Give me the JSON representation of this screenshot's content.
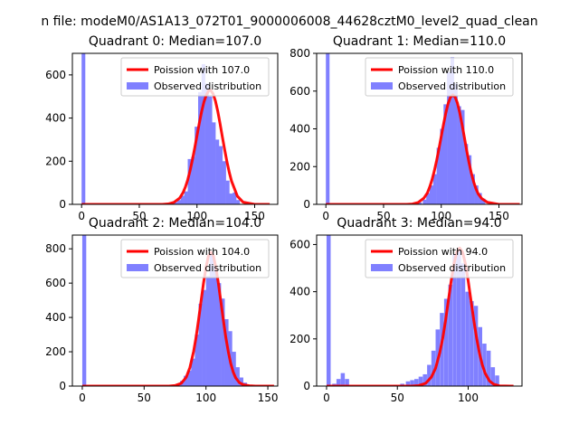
{
  "figure": {
    "suptitle": "n file: modeM0/AS1A13_072T01_9000006008_44628cztM0_level2_quad_clean"
  },
  "colors": {
    "poisson_line": "#ff0000",
    "histogram_fill": "#8080ff",
    "axes": "#000000",
    "background": "#ffffff"
  },
  "chart_data": [
    {
      "type": "bar",
      "title": "Quadrant 0: Median=107.0",
      "xlim": [
        -8,
        170
      ],
      "ylim": [
        0,
        700
      ],
      "xticks": [
        0,
        50,
        100,
        150
      ],
      "yticks": [
        0,
        200,
        400,
        600
      ],
      "legend_position": "top-right",
      "series": [
        {
          "name": "Poission with 107.0",
          "kind": "line",
          "mean": 107.0,
          "x": [
            0,
            60,
            70,
            75,
            80,
            85,
            88,
            90,
            92,
            94,
            96,
            98,
            100,
            102,
            104,
            106,
            107,
            108,
            110,
            112,
            114,
            116,
            118,
            120,
            122,
            124,
            126,
            128,
            130,
            135,
            140,
            150,
            163
          ],
          "y": [
            0,
            0,
            0,
            2,
            9,
            29,
            55,
            81,
            114,
            156,
            205,
            260,
            318,
            376,
            429,
            474,
            490,
            505,
            526,
            528,
            512,
            479,
            432,
            374,
            313,
            253,
            197,
            148,
            107,
            38,
            10,
            0,
            0
          ]
        },
        {
          "name": "Observed distribution",
          "kind": "bars",
          "bin_width": 3.2,
          "bin_starts": [
            0,
            80,
            83,
            86,
            89,
            92,
            95,
            98,
            101,
            104,
            107,
            110,
            113,
            116,
            119,
            122,
            125,
            128,
            131,
            134
          ],
          "counts": [
            700,
            10,
            20,
            40,
            60,
            210,
            220,
            360,
            520,
            650,
            560,
            500,
            380,
            300,
            270,
            200,
            110,
            50,
            55,
            20
          ]
        }
      ]
    },
    {
      "type": "bar",
      "title": "Quadrant 1: Median=110.0",
      "xlim": [
        -8,
        170
      ],
      "ylim": [
        0,
        800
      ],
      "xticks": [
        0,
        50,
        100,
        150
      ],
      "yticks": [
        0,
        200,
        400,
        600,
        800
      ],
      "legend_position": "top-right",
      "series": [
        {
          "name": "Poission with 110.0",
          "kind": "line",
          "mean": 110.0,
          "x": [
            0,
            60,
            70,
            75,
            80,
            85,
            88,
            90,
            92,
            94,
            96,
            98,
            100,
            102,
            104,
            106,
            108,
            110,
            112,
            114,
            116,
            118,
            120,
            122,
            124,
            126,
            128,
            130,
            132,
            135,
            140,
            150,
            168
          ],
          "y": [
            0,
            0,
            0,
            2,
            10,
            33,
            61,
            92,
            130,
            177,
            232,
            294,
            360,
            425,
            485,
            535,
            567,
            580,
            569,
            537,
            486,
            424,
            356,
            287,
            223,
            167,
            121,
            84,
            56,
            31,
            11,
            0,
            0
          ]
        },
        {
          "name": "Observed distribution",
          "kind": "bars",
          "bin_width": 3.2,
          "bin_starts": [
            0,
            80,
            84,
            87,
            90,
            93,
            96,
            99,
            102,
            105,
            108,
            111,
            114,
            117,
            120,
            123,
            126,
            129,
            132,
            135
          ],
          "counts": [
            800,
            10,
            25,
            60,
            100,
            160,
            300,
            400,
            530,
            700,
            780,
            640,
            520,
            500,
            320,
            260,
            160,
            100,
            60,
            30
          ]
        }
      ]
    },
    {
      "type": "bar",
      "title": "Quadrant 2: Median=104.0",
      "xlim": [
        -8,
        158
      ],
      "ylim": [
        0,
        880
      ],
      "xticks": [
        0,
        50,
        100,
        150
      ],
      "yticks": [
        0,
        200,
        400,
        600,
        800
      ],
      "legend_position": "top-right",
      "series": [
        {
          "name": "Poission with 104.0",
          "kind": "line",
          "mean": 104.0,
          "x": [
            0,
            60,
            70,
            75,
            80,
            84,
            87,
            90,
            92,
            94,
            96,
            98,
            100,
            102,
            104,
            106,
            108,
            110,
            112,
            114,
            116,
            118,
            120,
            122,
            124,
            127,
            130,
            135,
            140,
            155
          ],
          "y": [
            0,
            0,
            0,
            3,
            16,
            51,
            108,
            202,
            285,
            386,
            494,
            600,
            691,
            758,
            780,
            760,
            692,
            600,
            494,
            386,
            285,
            202,
            132,
            82,
            48,
            20,
            8,
            2,
            0,
            0
          ]
        },
        {
          "name": "Observed distribution",
          "kind": "bars",
          "bin_width": 3.2,
          "bin_starts": [
            0,
            76,
            79,
            82,
            85,
            88,
            91,
            94,
            97,
            100,
            103,
            106,
            109,
            112,
            115,
            118,
            121,
            124,
            127,
            130
          ],
          "counts": [
            880,
            10,
            30,
            60,
            90,
            160,
            300,
            480,
            560,
            640,
            780,
            700,
            600,
            510,
            390,
            320,
            200,
            110,
            50,
            20
          ]
        }
      ]
    },
    {
      "type": "bar",
      "title": "Quadrant 3: Median=94.0",
      "xlim": [
        -7,
        138
      ],
      "ylim": [
        0,
        640
      ],
      "xticks": [
        0,
        50,
        100
      ],
      "yticks": [
        0,
        200,
        400,
        600
      ],
      "legend_position": "top-right",
      "series": [
        {
          "name": "Poission with 94.0",
          "kind": "line",
          "mean": 94.0,
          "x": [
            0,
            50,
            60,
            65,
            70,
            74,
            77,
            80,
            82,
            84,
            86,
            88,
            90,
            92,
            94,
            96,
            98,
            100,
            102,
            104,
            106,
            108,
            110,
            112,
            115,
            118,
            122,
            130,
            132
          ],
          "y": [
            0,
            0,
            0,
            2,
            12,
            38,
            76,
            143,
            202,
            277,
            362,
            446,
            520,
            568,
            585,
            568,
            520,
            446,
            362,
            277,
            202,
            138,
            89,
            54,
            22,
            8,
            1,
            0,
            0
          ]
        },
        {
          "name": "Observed distribution",
          "kind": "bars",
          "bin_width": 2.9,
          "bin_starts": [
            0,
            4,
            7,
            10,
            13,
            47,
            52,
            56,
            59,
            62,
            65,
            68,
            71,
            74,
            77,
            80,
            83,
            86,
            89,
            92,
            95,
            98,
            101,
            104,
            107,
            110,
            113,
            116,
            119
          ],
          "counts": [
            640,
            10,
            30,
            55,
            30,
            5,
            10,
            20,
            25,
            30,
            40,
            50,
            90,
            150,
            240,
            310,
            370,
            430,
            560,
            580,
            520,
            400,
            360,
            340,
            250,
            180,
            150,
            80,
            45
          ]
        }
      ]
    }
  ]
}
